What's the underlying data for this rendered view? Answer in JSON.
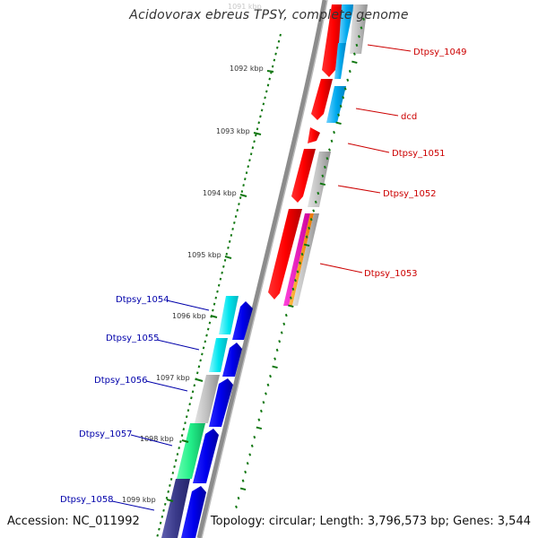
{
  "title": "Acidovorax ebreus TPSY, complete genome",
  "accession": "Accession: NC_011992",
  "topology": "Topology: circular; Length: 3,796,573 bp; Genes: 3,544",
  "colors": {
    "forward_label": "#cc0000",
    "reverse_label": "#0000aa",
    "ticks": "#117711",
    "backbone": "#888888"
  },
  "ticks": [
    {
      "label": "1091 kbp",
      "ghost": true
    },
    {
      "label": "1092 kbp"
    },
    {
      "label": "1093 kbp"
    },
    {
      "label": "1094 kbp"
    },
    {
      "label": "1095 kbp"
    },
    {
      "label": "1096 kbp"
    },
    {
      "label": "1097 kbp"
    },
    {
      "label": "1098 kbp"
    },
    {
      "label": "1099 kbp"
    }
  ],
  "gene_labels": [
    {
      "name": "Dtpsy_1049",
      "strand": "forward"
    },
    {
      "name": "dcd",
      "strand": "forward"
    },
    {
      "name": "Dtpsy_1051",
      "strand": "forward"
    },
    {
      "name": "Dtpsy_1052",
      "strand": "forward"
    },
    {
      "name": "Dtpsy_1053",
      "strand": "forward"
    },
    {
      "name": "Dtpsy_1054",
      "strand": "reverse"
    },
    {
      "name": "Dtpsy_1055",
      "strand": "reverse"
    },
    {
      "name": "Dtpsy_1056",
      "strand": "reverse"
    },
    {
      "name": "Dtpsy_1057",
      "strand": "reverse"
    },
    {
      "name": "Dtpsy_1058",
      "strand": "reverse"
    }
  ]
}
